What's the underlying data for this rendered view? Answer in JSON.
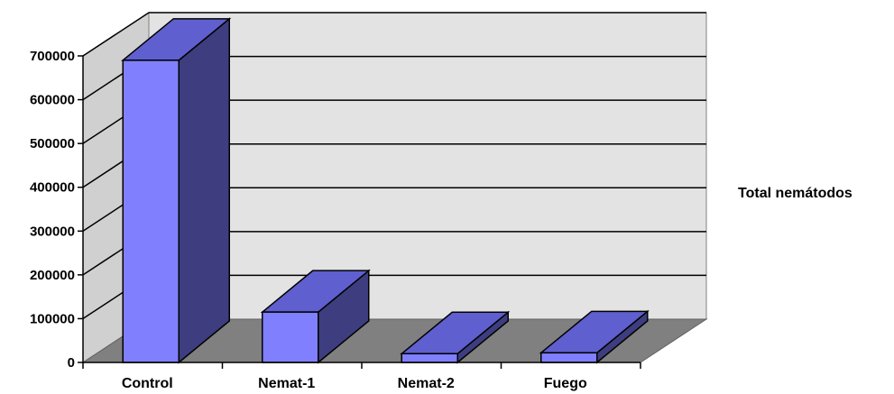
{
  "chart_data": {
    "type": "bar",
    "categories": [
      "Control",
      "Nemat-1",
      "Nemat-2",
      "Fuego"
    ],
    "series": [
      {
        "name": "Total nemátodos",
        "values": [
          690000,
          115000,
          20000,
          22000
        ]
      }
    ],
    "ylim": [
      0,
      700000
    ],
    "yticks": [
      "0",
      "100000",
      "200000",
      "300000",
      "400000",
      "500000",
      "600000",
      "700000"
    ],
    "grid": true,
    "legend_position": "right",
    "colors": {
      "bar_front": "#8080ff",
      "bar_top": "#5f5fcf",
      "bar_side": "#3d3d80",
      "floor": "#808080",
      "back_wall": "#e3e3e3",
      "side_wall": "#d0d0d0"
    }
  }
}
